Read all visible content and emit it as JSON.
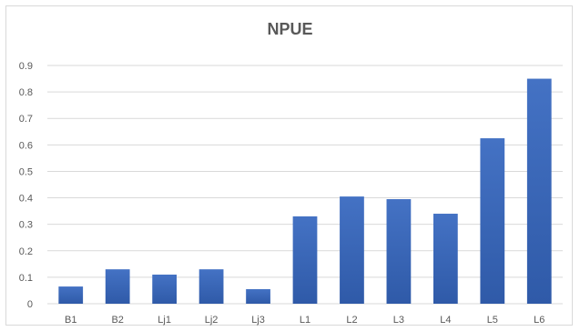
{
  "chart_data": {
    "type": "bar",
    "title": "NPUE",
    "categories": [
      "B1",
      "B2",
      "Lj1",
      "Lj2",
      "Lj3",
      "L1",
      "L2",
      "L3",
      "L4",
      "L5",
      "L6"
    ],
    "values": [
      0.065,
      0.13,
      0.11,
      0.13,
      0.055,
      0.33,
      0.405,
      0.395,
      0.34,
      0.625,
      0.85
    ],
    "yticks": [
      "0",
      "0.1",
      "0.2",
      "0.3",
      "0.4",
      "0.5",
      "0.6",
      "0.7",
      "0.8",
      "0.9"
    ],
    "ylim": [
      0,
      0.9
    ],
    "grid": true,
    "legend": "none",
    "bar_color": "#4472c4",
    "bar_color_dark": "#2f5aa8"
  }
}
